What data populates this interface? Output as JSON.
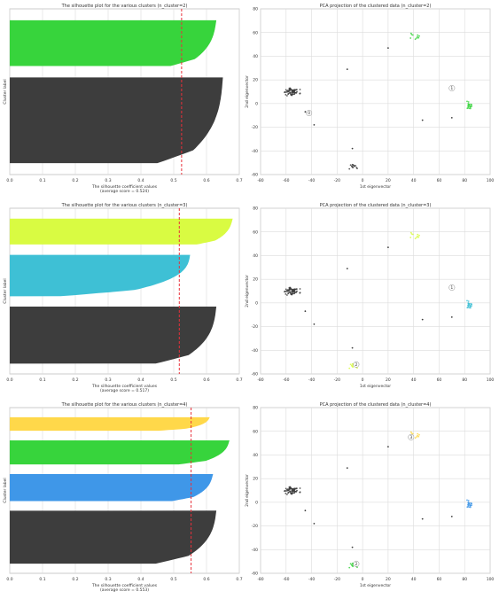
{
  "chart_data": [
    {
      "type": "silhouette",
      "title": "The silhouette plot for the various clusters (n_cluster=2)",
      "xlabel": "The silhouette coefficient values",
      "xlabel2": "(average score = 0.524)",
      "ylabel": "Cluster label",
      "xlim": [
        0,
        0.7
      ],
      "xticks": [
        "0.0",
        "0.1",
        "0.2",
        "0.3",
        "0.4",
        "0.5",
        "0.6",
        "0.7"
      ],
      "average": 0.524,
      "clusters": [
        {
          "label": "1",
          "color": "#37d43c",
          "n": 40,
          "max": 0.63,
          "min": 0.55
        },
        {
          "label": "0",
          "color": "#3d3d3d",
          "n": 75,
          "max": 0.65,
          "min": 0.53
        }
      ]
    },
    {
      "type": "scatter",
      "title": "PCA projection of the clustered data (n_cluster=2)",
      "xlabel": "1st eigenvector",
      "ylabel": "2nd eigenvector",
      "xlim": [
        -80,
        100
      ],
      "ylim": [
        -60,
        80
      ],
      "xticks": [
        "-80",
        "-60",
        "-40",
        "-20",
        "0",
        "20",
        "40",
        "60",
        "80",
        "100"
      ],
      "yticks": [
        "-60",
        "-40",
        "-20",
        "0",
        "20",
        "40",
        "60",
        "80"
      ],
      "centers": [
        {
          "label": "0",
          "x": -42,
          "y": -8
        },
        {
          "label": "1",
          "x": 70,
          "y": 13
        }
      ]
    },
    {
      "type": "silhouette",
      "title": "The silhouette plot for the various clusters (n_cluster=3)",
      "xlabel": "The silhouette coefficient values",
      "xlabel2": "(average score = 0.517)",
      "ylabel": "Cluster label",
      "xlim": [
        0,
        0.7
      ],
      "xticks": [
        "0.0",
        "0.1",
        "0.2",
        "0.3",
        "0.4",
        "0.5",
        "0.6",
        "0.7"
      ],
      "average": 0.517,
      "clusters": [
        {
          "label": "2",
          "color": "#d9fb42",
          "n": 25,
          "max": 0.68,
          "min": 0.62
        },
        {
          "label": "1",
          "color": "#3ec0d5",
          "n": 40,
          "max": 0.55,
          "min": 0.3
        },
        {
          "label": "0",
          "color": "#3d3d3d",
          "n": 55,
          "max": 0.63,
          "min": 0.52
        }
      ]
    },
    {
      "type": "scatter",
      "title": "PCA projection of the clustered data (n_cluster=3)",
      "xlabel": "1st eigenvector",
      "ylabel": "2nd eigenvector",
      "xlim": [
        -80,
        100
      ],
      "ylim": [
        -60,
        80
      ],
      "xticks": [
        "-80",
        "-60",
        "-40",
        "-20",
        "0",
        "20",
        "40",
        "60",
        "80",
        "100"
      ],
      "yticks": [
        "-60",
        "-40",
        "-20",
        "0",
        "20",
        "40",
        "60",
        "80"
      ],
      "centers": [
        {
          "label": "1",
          "x": 70,
          "y": 13
        },
        {
          "label": "2",
          "x": -5,
          "y": -52
        }
      ]
    },
    {
      "type": "silhouette",
      "title": "The silhouette plot for the various clusters (n_cluster=4)",
      "xlabel": "The silhouette coefficient values",
      "xlabel2": "(average score = 0.553)",
      "ylabel": "Cluster label",
      "xlim": [
        0,
        0.7
      ],
      "xticks": [
        "0.0",
        "0.1",
        "0.2",
        "0.3",
        "0.4",
        "0.5",
        "0.6",
        "0.7"
      ],
      "average": 0.553,
      "clusters": [
        {
          "label": "3",
          "color": "#ffd84a",
          "n": 14,
          "max": 0.61,
          "min": 0.52
        },
        {
          "label": "2",
          "color": "#37d43c",
          "n": 25,
          "max": 0.67,
          "min": 0.58
        },
        {
          "label": "1",
          "color": "#3f97e8",
          "n": 28,
          "max": 0.62,
          "min": 0.55
        },
        {
          "label": "0",
          "color": "#3d3d3d",
          "n": 55,
          "max": 0.63,
          "min": 0.52
        }
      ]
    },
    {
      "type": "scatter",
      "title": "PCA projection of the clustered data (n_cluster=4)",
      "xlabel": "1st eigenvector",
      "ylabel": "2nd eigenvector",
      "xlim": [
        -80,
        100
      ],
      "ylim": [
        -60,
        80
      ],
      "xticks": [
        "-80",
        "-60",
        "-40",
        "-20",
        "0",
        "20",
        "40",
        "60",
        "80",
        "100"
      ],
      "yticks": [
        "-60",
        "-40",
        "-20",
        "0",
        "20",
        "40",
        "60",
        "80"
      ],
      "centers": [
        {
          "label": "3",
          "x": 38,
          "y": 55
        },
        {
          "label": "2",
          "x": -5,
          "y": -52
        }
      ]
    }
  ]
}
